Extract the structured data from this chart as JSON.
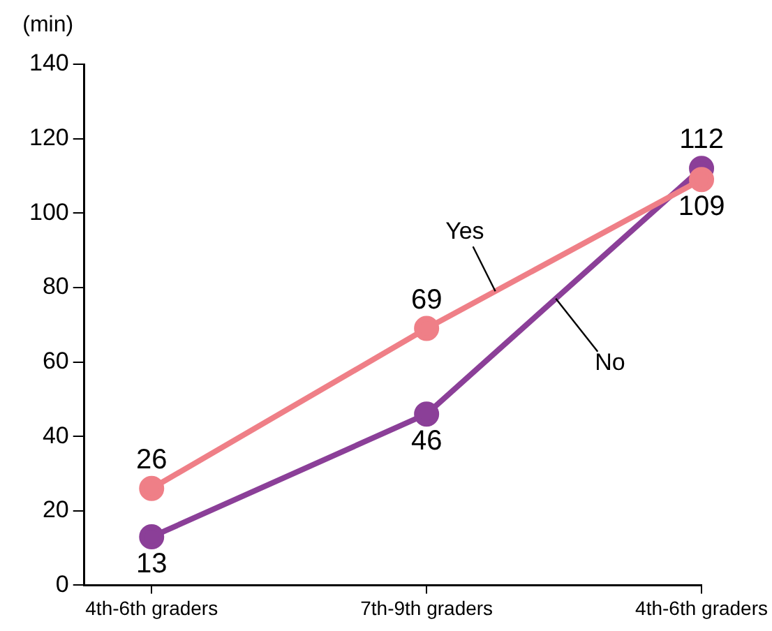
{
  "chart_data": {
    "type": "line",
    "ylabel": "(min)",
    "categories": [
      "4th-6th graders",
      "7th-9th graders",
      "4th-6th graders"
    ],
    "series": [
      {
        "name": "Yes",
        "color": "#ef7f87",
        "values": [
          26,
          69,
          109
        ]
      },
      {
        "name": "No",
        "color": "#8b3f98",
        "values": [
          13,
          46,
          112
        ]
      }
    ],
    "ylim": [
      0,
      140
    ],
    "yticks": [
      0,
      20,
      40,
      60,
      80,
      100,
      120,
      140
    ],
    "grid": false,
    "legend": false,
    "marker": "circle",
    "line_style": "solid",
    "data_labels": true
  }
}
